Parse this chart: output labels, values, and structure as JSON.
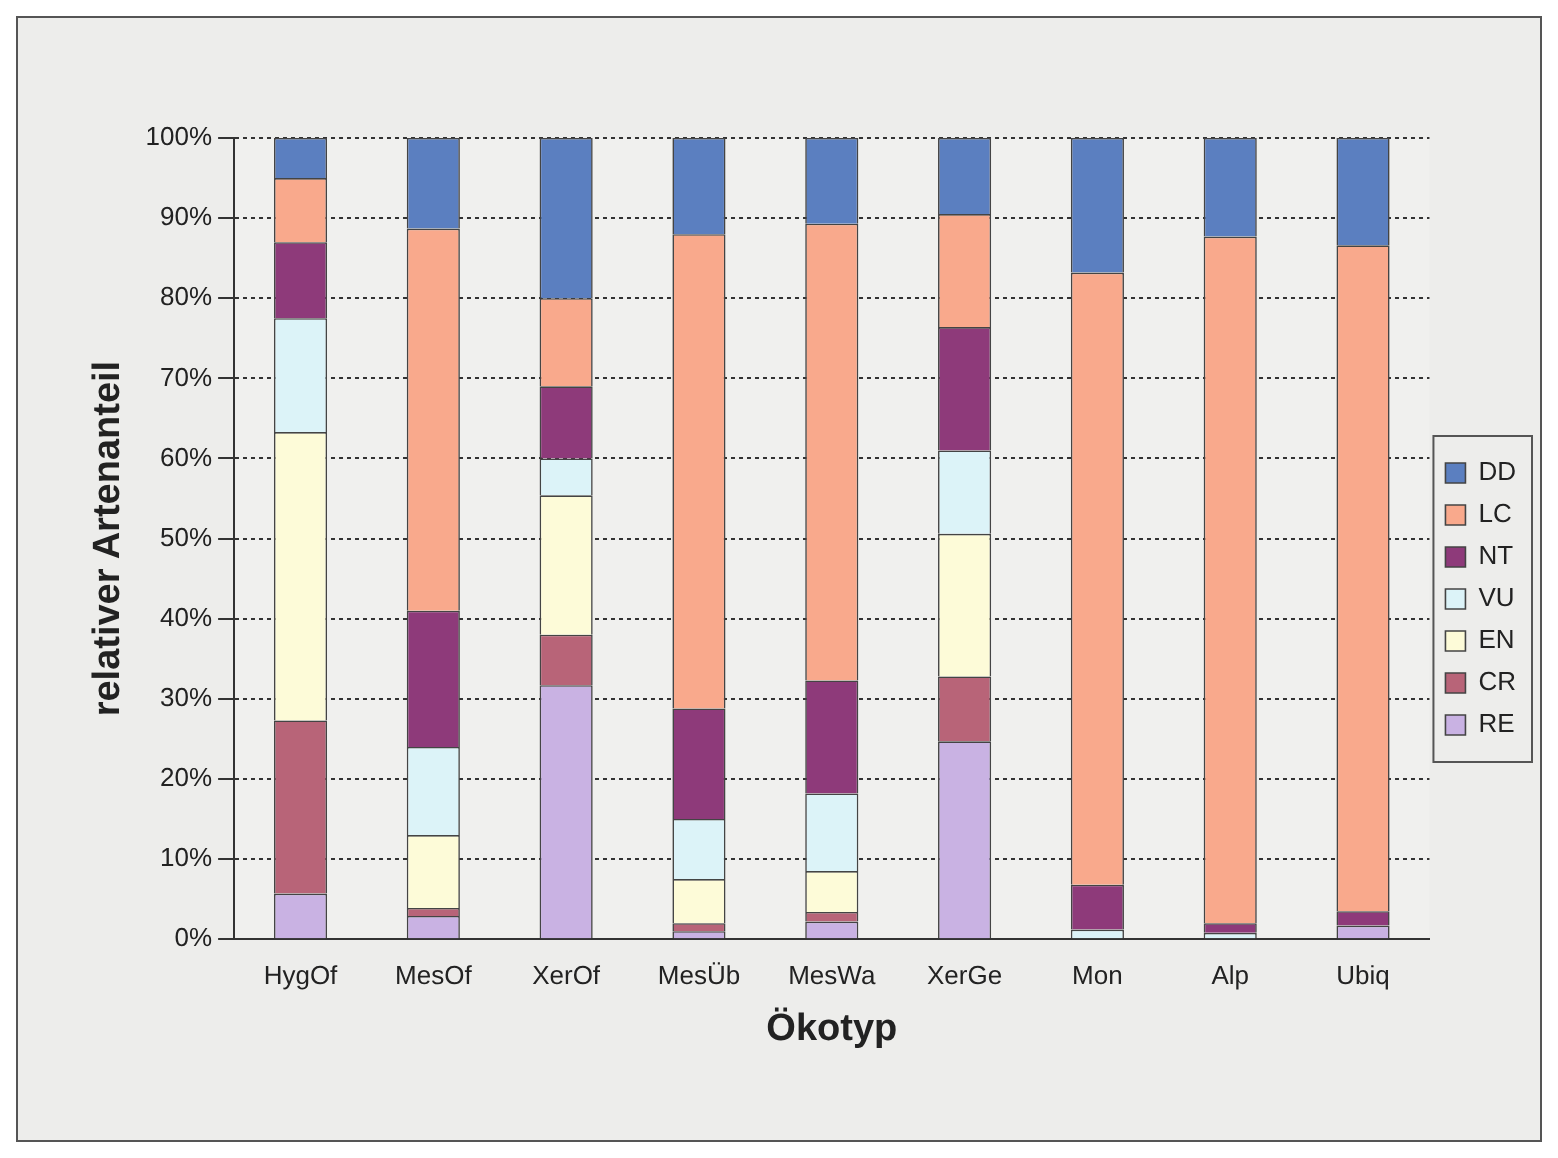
{
  "chart_data": {
    "type": "bar",
    "stacked": true,
    "xlabel": "Ökotyp",
    "ylabel": "relativer Artenanteil",
    "categories": [
      "HygOf",
      "MesOf",
      "XerOf",
      "MesÜb",
      "MesWa",
      "XerGe",
      "Mon",
      "Alp",
      "Ubiq"
    ],
    "series": [
      {
        "name": "RE",
        "color": "#c9b2e3",
        "values": [
          5.7,
          2.9,
          31.7,
          1,
          2.2,
          24.7,
          0,
          0,
          1.7
        ]
      },
      {
        "name": "CR",
        "color": "#b86478",
        "values": [
          21.6,
          1,
          6.3,
          1,
          1.2,
          8.1,
          null,
          0,
          0
        ]
      },
      {
        "name": "EN",
        "color": "#fdfbd8",
        "values": [
          36,
          9.1,
          17.4,
          5.5,
          5.1,
          17.8,
          0,
          0,
          0
        ]
      },
      {
        "name": "VU",
        "color": "#dcf3f8",
        "values": [
          14.2,
          11,
          4.6,
          7.5,
          9.7,
          10.4,
          1.2,
          0.8,
          0
        ]
      },
      {
        "name": "NT",
        "color": "#8e3a7a",
        "values": [
          9.5,
          17,
          9,
          13.8,
          14.1,
          15.4,
          5.6,
          1.2,
          1.8
        ]
      },
      {
        "name": "LC",
        "color": "#f9a98c",
        "values": [
          8,
          47.7,
          11,
          59.2,
          57,
          14.1,
          76.4,
          85.7,
          83.1
        ]
      },
      {
        "name": "DD",
        "color": "#5b7fc0",
        "values": [
          5,
          11.3,
          20,
          12,
          10.7,
          9.5,
          16.8,
          12.3,
          13.4
        ]
      }
    ],
    "ylim": [
      0,
      100
    ],
    "yticks": [
      {
        "value": 0,
        "label": "0%"
      },
      {
        "value": 10,
        "label": "10%"
      },
      {
        "value": 20,
        "label": "20%"
      },
      {
        "value": 30,
        "label": "30%"
      },
      {
        "value": 40,
        "label": "40%"
      },
      {
        "value": 50,
        "label": "50%"
      },
      {
        "value": 60,
        "label": "60%"
      },
      {
        "value": 70,
        "label": "70%"
      },
      {
        "value": 80,
        "label": "80%"
      },
      {
        "value": 90,
        "label": "90%"
      },
      {
        "value": 100,
        "label": "100%"
      }
    ],
    "grid": "y",
    "legend": "right"
  }
}
